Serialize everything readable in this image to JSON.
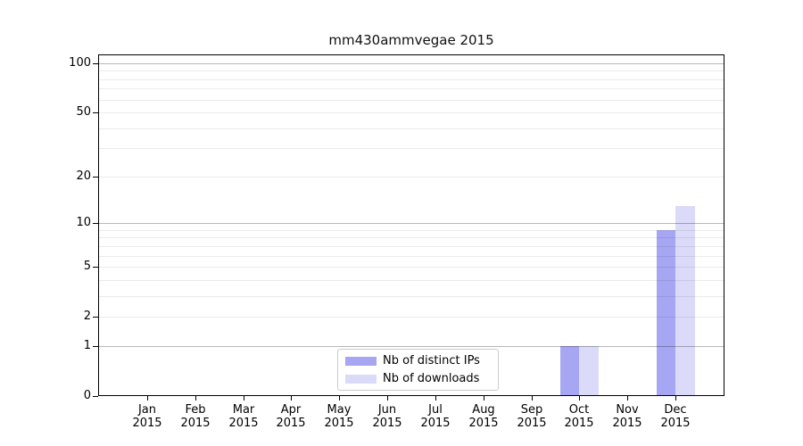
{
  "chart_data": {
    "type": "bar",
    "title": "mm430ammvegae 2015",
    "x_categories": [
      "Jan",
      "Feb",
      "Mar",
      "Apr",
      "May",
      "Jun",
      "Jul",
      "Aug",
      "Sep",
      "Oct",
      "Nov",
      "Dec"
    ],
    "x_year": "2015",
    "series": [
      {
        "name": "Nb of distinct IPs",
        "color": "#a6a6f2",
        "values": [
          0,
          0,
          0,
          0,
          0,
          0,
          0,
          0,
          0,
          1,
          0,
          9
        ]
      },
      {
        "name": "Nb of downloads",
        "color": "#dbdbf9",
        "values": [
          0,
          0,
          0,
          0,
          0,
          0,
          0,
          0,
          0,
          1,
          0,
          13
        ]
      }
    ],
    "y_scale": "log1p",
    "y_tick_labels": [
      0,
      1,
      2,
      5,
      10,
      20,
      50,
      100
    ],
    "y_grid_major": [
      1,
      10,
      100
    ],
    "y_grid_minor": [
      2,
      3,
      4,
      5,
      6,
      7,
      8,
      9,
      20,
      30,
      40,
      50,
      60,
      70,
      80,
      90
    ],
    "ylim": [
      0,
      113
    ],
    "legend_position": "lower center",
    "grid": true,
    "xlabel": "",
    "ylabel": "",
    "colors": {
      "bar_distinct_ips": "#a6a6f2",
      "bar_downloads": "#dbdbf9",
      "major_grid": "#b8b8b8",
      "minor_grid": "#ebebeb",
      "axis": "#000000",
      "background": "#ffffff"
    }
  }
}
